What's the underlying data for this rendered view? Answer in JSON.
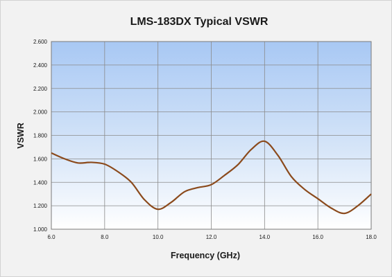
{
  "chart_data": {
    "type": "line",
    "title": "LMS-183DX Typical VSWR",
    "xlabel": "Frequency (GHz)",
    "ylabel": "VSWR",
    "xlim": [
      6.0,
      18.0
    ],
    "ylim": [
      1.0,
      2.6
    ],
    "x_ticks": [
      "6.0",
      "8.0",
      "10.0",
      "12.0",
      "14.0",
      "16.0",
      "18.0"
    ],
    "y_ticks": [
      "1.000",
      "1.200",
      "1.400",
      "1.600",
      "1.800",
      "2.000",
      "2.200",
      "2.400",
      "2.600"
    ],
    "grid": true,
    "legend": "none",
    "series": [
      {
        "color": "#8b4a1c",
        "x": [
          6.0,
          6.5,
          7.0,
          7.5,
          8.0,
          8.5,
          9.0,
          9.5,
          10.0,
          10.5,
          11.0,
          11.5,
          12.0,
          12.5,
          13.0,
          13.5,
          14.0,
          14.5,
          15.0,
          15.5,
          16.0,
          16.5,
          17.0,
          17.5,
          18.0
        ],
        "y": [
          1.65,
          1.6,
          1.565,
          1.57,
          1.555,
          1.49,
          1.4,
          1.25,
          1.17,
          1.23,
          1.32,
          1.355,
          1.38,
          1.46,
          1.55,
          1.68,
          1.75,
          1.63,
          1.45,
          1.34,
          1.26,
          1.18,
          1.135,
          1.2,
          1.3
        ]
      }
    ]
  }
}
